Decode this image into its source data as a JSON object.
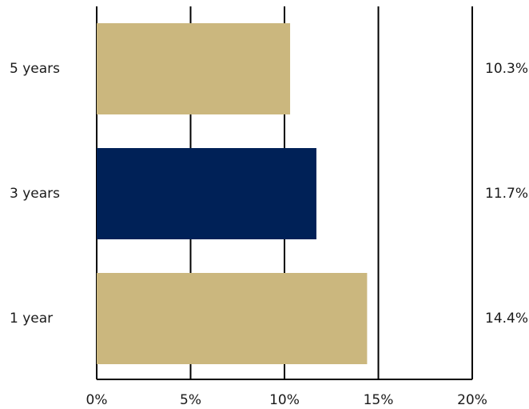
{
  "chart_data": {
    "type": "bar",
    "orientation": "horizontal",
    "categories": [
      "5 years",
      "3 years",
      "1 year"
    ],
    "values": [
      10.3,
      11.7,
      14.4
    ],
    "value_labels": [
      "10.3%",
      "11.7%",
      "14.4%"
    ],
    "bar_colors": [
      "#CBB77E",
      "#002157",
      "#CBB77E"
    ],
    "x_ticks": [
      0,
      5,
      10,
      15,
      20
    ],
    "x_tick_labels": [
      "0%",
      "5%",
      "10%",
      "15%",
      "20%"
    ],
    "xlim": [
      0,
      20
    ],
    "grid": true,
    "title": "",
    "xlabel": "",
    "ylabel": ""
  }
}
